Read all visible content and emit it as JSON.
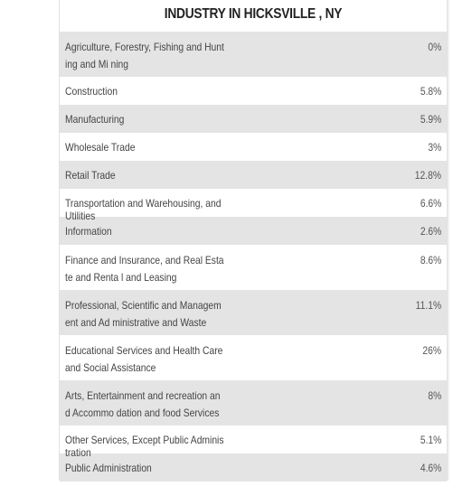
{
  "title": "INDUSTRY IN HICKSVILLE , NY",
  "rows": [
    {
      "label": "Agriculture, Forestry, Fishing and Hunting and Mi ning",
      "value": "0%"
    },
    {
      "label": "Construction",
      "value": "5.8%"
    },
    {
      "label": "Manufacturing",
      "value": "5.9%"
    },
    {
      "label": "Wholesale Trade",
      "value": "3%"
    },
    {
      "label": "Retail Trade",
      "value": "12.8%"
    },
    {
      "label": "Transportation and Warehousing, and Utilities",
      "value": "6.6%"
    },
    {
      "label": "Information",
      "value": "2.6%"
    },
    {
      "label": "Finance and Insurance, and Real Estate and Renta l and Leasing",
      "value": "8.6%"
    },
    {
      "label": "Professional, Scientific and Management and Ad ministrative and Waste",
      "value": "11.1%"
    },
    {
      "label": "Educational Services and Health Care and Social Assistance",
      "value": "26%"
    },
    {
      "label": "Arts, Entertainment and recreation and Accommo dation and food Services",
      "value": "8%"
    },
    {
      "label": "Other Services, Except Public Administration",
      "value": "5.1%"
    },
    {
      "label": "Public Administration",
      "value": "4.6%"
    }
  ],
  "colors": {
    "stripe": "#e4e4e4",
    "background": "#ffffff",
    "text": "#444444",
    "title": "#222222"
  }
}
